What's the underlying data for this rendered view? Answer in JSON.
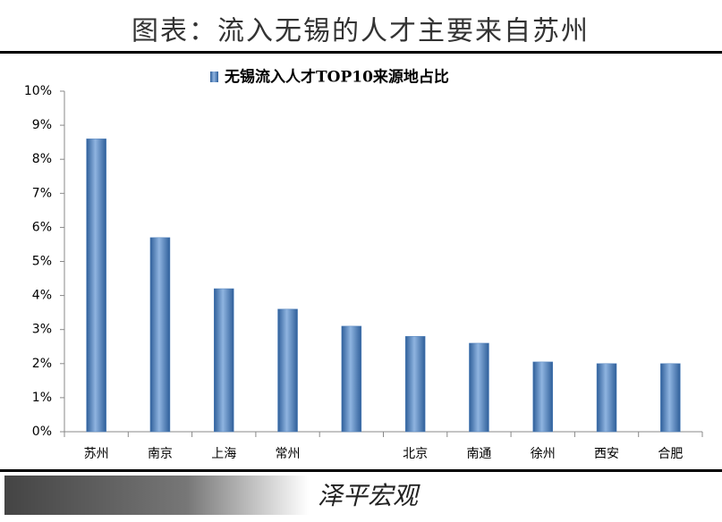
{
  "chart_data": {
    "type": "bar",
    "title": "图表：流入无锡的人才主要来自苏州",
    "categories": [
      "苏州",
      "南京",
      "上海",
      "常州",
      null,
      "北京",
      "南通",
      "徐州",
      "西安",
      "合肥"
    ],
    "series": [
      {
        "name": "无锡流入人才TOP10来源地占比",
        "color": "#4f81bd",
        "values": [
          8.6,
          5.7,
          4.2,
          3.6,
          3.1,
          2.8,
          2.6,
          2.05,
          2.0,
          2.0
        ]
      }
    ],
    "ylim": [
      0,
      10
    ],
    "yticks": [
      {
        "value": 0,
        "label": "0%"
      },
      {
        "value": 1,
        "label": "1%"
      },
      {
        "value": 2,
        "label": "2%"
      },
      {
        "value": 3,
        "label": "3%"
      },
      {
        "value": 4,
        "label": "4%"
      },
      {
        "value": 5,
        "label": "5%"
      },
      {
        "value": 6,
        "label": "6%"
      },
      {
        "value": 7,
        "label": "7%"
      },
      {
        "value": 8,
        "label": "8%"
      },
      {
        "value": 9,
        "label": "9%"
      },
      {
        "value": 10,
        "label": "10%"
      }
    ],
    "grid": false,
    "source": "泽平宏观"
  }
}
